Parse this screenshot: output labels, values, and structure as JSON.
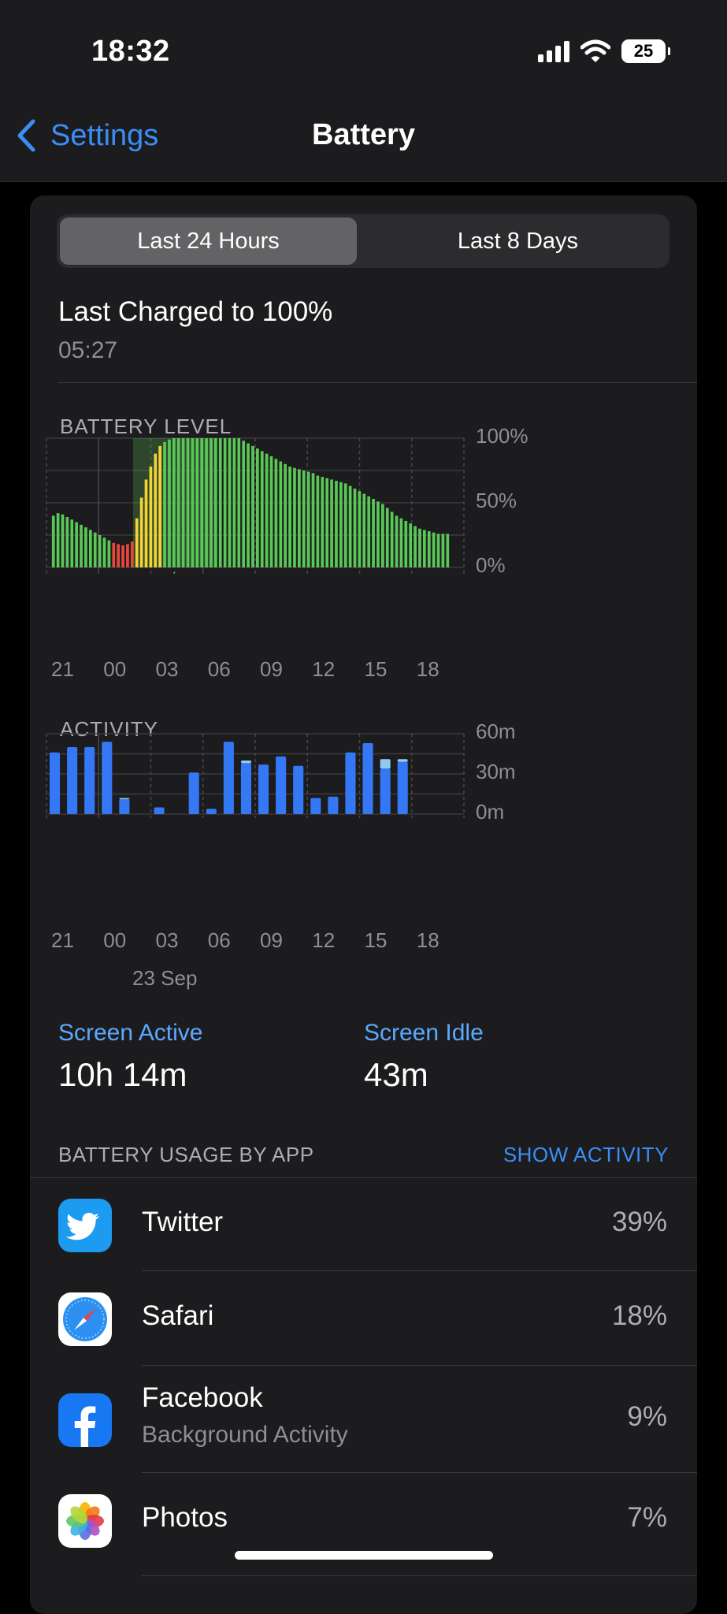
{
  "status_bar": {
    "time": "18:32",
    "battery_level": "25",
    "signal_bars": 4,
    "icons": [
      "cellular-signal-icon",
      "wifi-icon",
      "battery-icon"
    ]
  },
  "nav": {
    "back_label": "Settings",
    "title": "Battery",
    "back_icon": "chevron-left-icon"
  },
  "segment": {
    "options": [
      "Last 24 Hours",
      "Last 8 Days"
    ],
    "selected": 0
  },
  "last_charged": {
    "title": "Last Charged to 100%",
    "time": "05:27"
  },
  "battery_chart": {
    "label": "BATTERY LEVEL",
    "y_ticks": [
      "100%",
      "50%",
      "0%"
    ],
    "x_ticks": [
      "21",
      "00",
      "03",
      "06",
      "09",
      "12",
      "15",
      "18"
    ]
  },
  "activity_chart": {
    "label": "ACTIVITY",
    "y_ticks": [
      "60m",
      "30m",
      "0m"
    ],
    "x_ticks": [
      "21",
      "00",
      "03",
      "06",
      "09",
      "12",
      "15",
      "18"
    ],
    "date_label": "23 Sep"
  },
  "screen": {
    "active_label": "Screen Active",
    "active_value": "10h 14m",
    "idle_label": "Screen Idle",
    "idle_value": "43m"
  },
  "usage": {
    "header": "BATTERY USAGE BY APP",
    "action": "SHOW ACTIVITY",
    "apps": [
      {
        "name": "Twitter",
        "subtitle": "",
        "percent": "39%",
        "icon": "twitter-bird-icon"
      },
      {
        "name": "Safari",
        "subtitle": "",
        "percent": "18%",
        "icon": "safari-compass-icon"
      },
      {
        "name": "Facebook",
        "subtitle": "Background Activity",
        "percent": "9%",
        "icon": "facebook-f-icon"
      },
      {
        "name": "Photos",
        "subtitle": "",
        "percent": "7%",
        "icon": "photos-flower-icon"
      }
    ]
  },
  "colors": {
    "accent": "#3a8ef6",
    "battery_green": "#5ac857",
    "battery_yellow": "#f5d334",
    "battery_red": "#e8483c",
    "activity_blue": "#3478f6",
    "activity_light": "#8fcbef"
  },
  "chart_data": [
    {
      "type": "bar",
      "title": "BATTERY LEVEL",
      "x_ticks": [
        "21",
        "00",
        "03",
        "06",
        "09",
        "12",
        "15",
        "18"
      ],
      "ylim": [
        0,
        100
      ],
      "y_ticks": [
        "0%",
        "50%",
        "100%"
      ],
      "series": [
        {
          "values": [
            0,
            40,
            42,
            41,
            39,
            37,
            35,
            33,
            31,
            29,
            27,
            25,
            23,
            21,
            19,
            18,
            17,
            18,
            20,
            38,
            54,
            68,
            78,
            88,
            94,
            97,
            99,
            100,
            100,
            100,
            100,
            100,
            100,
            100,
            100,
            100,
            100,
            100,
            100,
            100,
            100,
            100,
            98,
            96,
            94,
            92,
            90,
            88,
            86,
            84,
            82,
            80,
            78,
            77,
            76,
            75,
            74,
            73,
            71,
            70,
            69,
            68,
            67,
            66,
            65,
            63,
            61,
            59,
            57,
            55,
            53,
            51,
            49,
            46,
            43,
            40,
            38,
            36,
            34,
            32,
            30,
            29,
            28,
            27,
            26,
            26,
            26
          ]
        }
      ],
      "charging_range": [
        19,
        37
      ]
    },
    {
      "type": "bar",
      "title": "ACTIVITY",
      "x_ticks": [
        "21",
        "00",
        "03",
        "06",
        "09",
        "12",
        "15",
        "18"
      ],
      "ylim": [
        0,
        60
      ],
      "y_ticks": [
        "0m",
        "30m",
        "60m"
      ],
      "categories": [
        0,
        1,
        2,
        3,
        4,
        5,
        6,
        7,
        8,
        9,
        10,
        11,
        12,
        13,
        14,
        15,
        16,
        17,
        18,
        19,
        20
      ],
      "series": [
        {
          "values": [
            46,
            50,
            50,
            54,
            11,
            0,
            5,
            0,
            31,
            4,
            54,
            38,
            37,
            43,
            36,
            12,
            13,
            46,
            53,
            34,
            39
          ]
        },
        {
          "values": [
            0,
            0,
            0,
            0,
            1,
            0,
            0,
            0,
            0,
            0,
            0,
            2,
            0,
            0,
            0,
            0,
            0,
            0,
            0,
            7,
            2
          ]
        }
      ]
    }
  ]
}
